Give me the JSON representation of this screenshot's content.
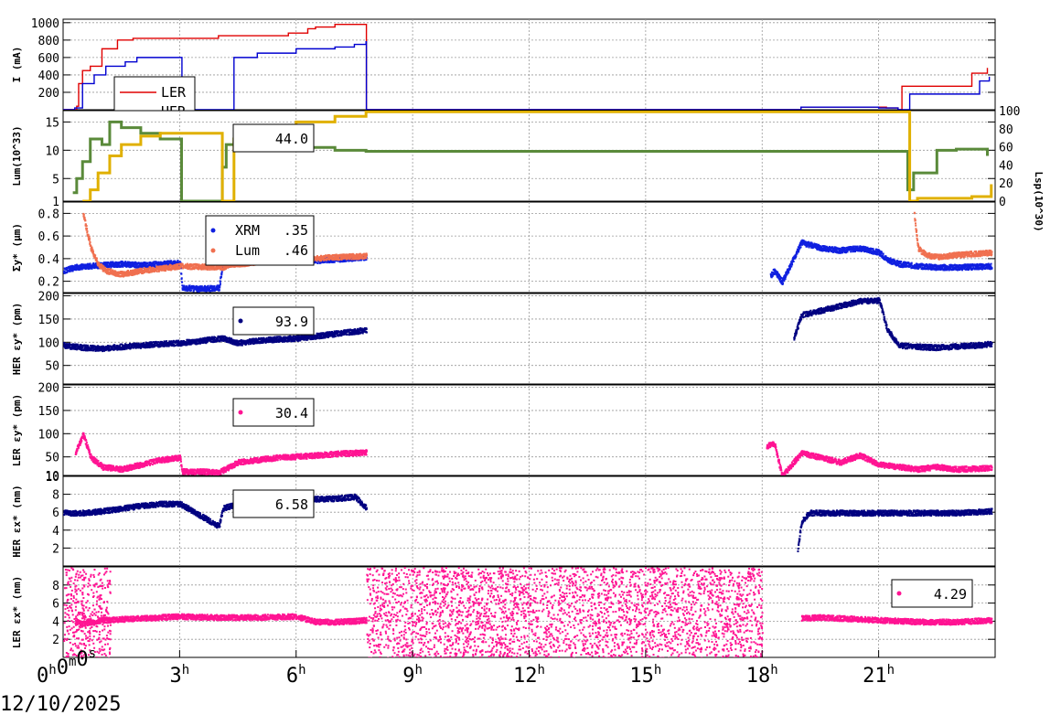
{
  "date_label": "12/10/2025",
  "chart_data": [
    {
      "type": "line",
      "ylabel": "I (mA)",
      "ylim": [
        0,
        1040
      ],
      "yticks": [
        "200",
        "400",
        "600",
        "800",
        "1000"
      ],
      "ytick_values": [
        200,
        400,
        600,
        800,
        1000
      ],
      "grid": true,
      "legend": [
        "LER",
        "HER"
      ],
      "series": [
        {
          "name": "LER",
          "color": "#e00000",
          "x": [
            0,
            0.35,
            0.4,
            0.5,
            0.7,
            1.0,
            1.4,
            1.7,
            1.8,
            3.5,
            4.0,
            5.5,
            5.8,
            6.3,
            6.5,
            7.0,
            7.8,
            7.81,
            18.0,
            19.0,
            21.2,
            21.5,
            21.6,
            23.2,
            23.4,
            23.8
          ],
          "y": [
            0,
            40,
            300,
            450,
            500,
            700,
            800,
            800,
            820,
            820,
            850,
            850,
            880,
            930,
            950,
            980,
            980,
            0,
            0,
            30,
            20,
            0,
            270,
            270,
            420,
            480
          ]
        },
        {
          "name": "HER",
          "color": "#0000d0",
          "x": [
            0,
            0.3,
            0.5,
            0.8,
            1.1,
            1.6,
            1.9,
            2.0,
            3.05,
            3.06,
            4.0,
            4.4,
            5.0,
            6.0,
            7.0,
            7.5,
            7.8,
            7.81,
            18.0,
            19.0,
            21.0,
            21.5,
            21.8,
            23.3,
            23.6,
            23.85
          ],
          "y": [
            0,
            20,
            300,
            400,
            500,
            550,
            600,
            600,
            600,
            0,
            0,
            600,
            650,
            700,
            720,
            750,
            780,
            0,
            0,
            30,
            20,
            0,
            180,
            180,
            330,
            380
          ]
        }
      ]
    },
    {
      "type": "line",
      "ylabel": "Lum(10^33)",
      "ylim": [
        1,
        17
      ],
      "yticks": [
        "1",
        "5",
        "10",
        "15"
      ],
      "ytick_values": [
        1,
        5,
        10,
        15
      ],
      "y2label": "Lsp(10^30)",
      "y2lim": [
        0,
        100
      ],
      "y2ticks": [
        "0",
        "20",
        "40",
        "60",
        "80",
        "100"
      ],
      "grid": true,
      "legend_value": "44.0",
      "series": [
        {
          "name": "",
          "color": "#5a8a3a",
          "x": [
            0.25,
            0.35,
            0.5,
            0.7,
            1.0,
            1.2,
            1.5,
            2.0,
            2.5,
            3.0,
            3.05,
            4.1,
            4.2,
            4.4,
            5.0,
            6.0,
            7.0,
            7.8,
            21.75,
            21.9,
            22.5,
            23.0,
            23.8
          ],
          "y": [
            2.5,
            5,
            8,
            12,
            11,
            15,
            14,
            13,
            12,
            12,
            1,
            7,
            11,
            12,
            11.5,
            10.5,
            10,
            9.8,
            3,
            6,
            10,
            10.2,
            9
          ]
        },
        {
          "name": "",
          "color": "#e0b000",
          "x": [
            0.5,
            0.7,
            0.9,
            1.2,
            1.5,
            2.0,
            2.5,
            3.05,
            4.1,
            4.4,
            5.0,
            6.0,
            7.0,
            7.8,
            21.8,
            22.0,
            23.0,
            23.4,
            23.9
          ],
          "y": [
            1,
            3,
            6,
            9,
            11,
            12.5,
            13,
            13,
            1,
            12,
            14,
            15,
            16,
            16.8,
            1,
            1.5,
            1.5,
            1.8,
            4
          ]
        }
      ]
    },
    {
      "type": "scatter",
      "ylabel": "Σy* (μm)",
      "ylim": [
        0.1,
        0.9
      ],
      "yticks": [
        "0.2",
        "0.4",
        "0.6",
        "0.8"
      ],
      "ytick_values": [
        0.2,
        0.4,
        0.6,
        0.8
      ],
      "grid": true,
      "legend": [
        "XRM",
        "Lum"
      ],
      "legend_values": [
        ".35",
        ".46"
      ],
      "series": [
        {
          "name": "XRM",
          "color": "#1020e0",
          "x": [
            0,
            0.3,
            0.6,
            1.0,
            1.5,
            2.0,
            2.5,
            3.0,
            3.05,
            3.5,
            4.0,
            4.1,
            4.5,
            5.0,
            6.0,
            7.0,
            7.8,
            18.2,
            18.3,
            18.5,
            19.0,
            19.5,
            20.0,
            20.5,
            21.0,
            21.2,
            21.5,
            22.0,
            22.5,
            23.0,
            23.9
          ],
          "y": [
            0.3,
            0.33,
            0.34,
            0.35,
            0.36,
            0.35,
            0.36,
            0.37,
            0.15,
            0.14,
            0.15,
            0.35,
            0.37,
            0.38,
            0.38,
            0.4,
            0.42,
            0.25,
            0.3,
            0.2,
            0.55,
            0.5,
            0.48,
            0.5,
            0.46,
            0.4,
            0.36,
            0.34,
            0.33,
            0.33,
            0.34
          ]
        },
        {
          "name": "Lum",
          "color": "#f07050",
          "x": [
            0.5,
            0.7,
            0.9,
            1.1,
            1.3,
            1.5,
            2.0,
            2.5,
            3.0,
            4.1,
            4.3,
            4.6,
            5.0,
            6.0,
            7.0,
            7.8,
            21.9,
            22.0,
            22.2,
            22.5,
            23.0,
            23.5,
            23.9
          ],
          "y": [
            0.8,
            0.5,
            0.35,
            0.3,
            0.28,
            0.27,
            0.3,
            0.32,
            0.34,
            0.33,
            0.36,
            0.36,
            0.38,
            0.4,
            0.42,
            0.43,
            0.8,
            0.5,
            0.44,
            0.42,
            0.44,
            0.45,
            0.46
          ]
        }
      ]
    },
    {
      "type": "scatter",
      "ylabel": "HER εy* (pm)",
      "ylim": [
        10,
        205
      ],
      "yticks": [
        "50",
        "100",
        "150",
        "200"
      ],
      "ytick_values": [
        50,
        100,
        150,
        200
      ],
      "grid": true,
      "legend_value": "93.9",
      "series": [
        {
          "name": "",
          "color": "#000080",
          "x": [
            0,
            0.5,
            1.0,
            1.5,
            2.0,
            2.5,
            3.0,
            4.1,
            4.5,
            5.0,
            5.5,
            6.0,
            6.5,
            7.0,
            7.5,
            7.8,
            18.8,
            19.0,
            19.5,
            20.0,
            20.5,
            21.0,
            21.2,
            21.5,
            22.0,
            22.5,
            23.0,
            23.5,
            23.9
          ],
          "y": [
            95,
            90,
            88,
            92,
            95,
            98,
            100,
            110,
            100,
            105,
            108,
            110,
            115,
            120,
            125,
            128,
            110,
            160,
            170,
            180,
            190,
            192,
            130,
            95,
            92,
            90,
            93,
            95,
            98
          ]
        }
      ]
    },
    {
      "type": "scatter",
      "ylabel": "LER εy* (pm)",
      "ylim": [
        10,
        205
      ],
      "yticks": [
        "10",
        "50",
        "100",
        "150",
        "200"
      ],
      "ytick_values": [
        10,
        50,
        100,
        150,
        200
      ],
      "grid": true,
      "legend_value": "30.4",
      "series": [
        {
          "name": "",
          "color": "#ff1493",
          "x": [
            0.3,
            0.5,
            0.7,
            1.0,
            1.5,
            2.0,
            2.5,
            3.0,
            3.05,
            3.5,
            4.0,
            4.5,
            5.0,
            5.5,
            6.0,
            6.5,
            7.0,
            7.5,
            7.8,
            18.1,
            18.3,
            18.5,
            19.0,
            19.5,
            20.0,
            20.5,
            21.0,
            21.5,
            22.0,
            22.5,
            23.0,
            23.9
          ],
          "y": [
            60,
            100,
            50,
            30,
            25,
            35,
            45,
            50,
            20,
            20,
            18,
            40,
            45,
            50,
            52,
            55,
            58,
            60,
            62,
            75,
            80,
            10,
            60,
            50,
            40,
            55,
            35,
            30,
            25,
            30,
            25,
            28
          ]
        }
      ]
    },
    {
      "type": "scatter",
      "ylabel": "HER εx* (nm)",
      "ylim": [
        0,
        10
      ],
      "yticks": [
        "2",
        "4",
        "6",
        "8",
        "10"
      ],
      "ytick_values": [
        2,
        4,
        6,
        8,
        10
      ],
      "grid": true,
      "legend_value": "6.58",
      "series": [
        {
          "name": "",
          "color": "#000080",
          "x": [
            0,
            0.5,
            1.0,
            1.5,
            2.0,
            2.5,
            3.0,
            4.0,
            4.1,
            4.5,
            5.0,
            6.0,
            7.0,
            7.5,
            7.8,
            18.9,
            19.0,
            19.2,
            19.5,
            20.0,
            21.0,
            22.0,
            23.0,
            23.9
          ],
          "y": [
            6,
            6,
            6.2,
            6.5,
            6.8,
            7,
            7,
            4.5,
            6.5,
            7,
            7.2,
            7.5,
            7.6,
            7.8,
            6.5,
            2,
            5,
            6,
            6,
            6,
            6,
            6,
            6,
            6.2
          ]
        }
      ]
    },
    {
      "type": "scatter",
      "ylabel": "LER εx* (nm)",
      "ylim": [
        0,
        10
      ],
      "yticks": [
        "2",
        "4",
        "6",
        "8"
      ],
      "ytick_values": [
        2,
        4,
        6,
        8
      ],
      "grid": true,
      "legend_value": "4.29",
      "series": [
        {
          "name": "",
          "color": "#ff1493",
          "x": [
            0.3,
            0.5,
            1.0,
            1.5,
            2.0,
            2.5,
            3.0,
            4.0,
            5.0,
            6.0,
            6.5,
            7.0,
            7.5,
            7.8,
            19.0,
            19.5,
            20.0,
            21.0,
            22.0,
            23.0,
            23.9
          ],
          "y": [
            4,
            3.8,
            4.2,
            4.3,
            4.4,
            4.5,
            4.6,
            4.5,
            4.5,
            4.6,
            4.0,
            4.0,
            4.1,
            4.2,
            4.4,
            4.5,
            4.4,
            4.2,
            4.0,
            4.0,
            4.2
          ]
        }
      ]
    }
  ],
  "x_axis": {
    "xlim": [
      0,
      24
    ],
    "ticks": [
      0,
      3,
      6,
      9,
      12,
      15,
      18,
      21
    ],
    "tick_labels": [
      "0h0m0s",
      "3h",
      "6h",
      "9h",
      "12h",
      "15h",
      "18h",
      "21h"
    ]
  }
}
